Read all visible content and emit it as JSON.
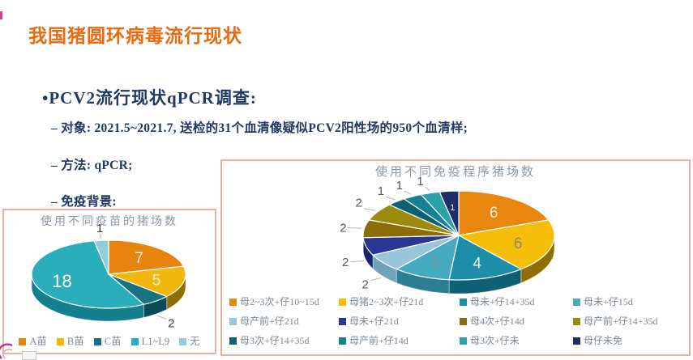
{
  "slide": {
    "title": "我国猪圆环病毒流行现状",
    "heading": "•PCV2流行现状qPCR调查:",
    "bullets": [
      "– 对象: 2021.5~2021.7, 送检的31个血清像疑似PCV2阳性场的950个血清样;",
      "– 方法: qPCR;",
      "– 免疫背景:"
    ]
  },
  "colors": {
    "accent_orange": "#E96A10",
    "text_navy": "#1F3864",
    "box_border": "#EFB19B",
    "chart_title_gray": "#8C99A6",
    "legend_text_gray": "#7D8994",
    "leader_line_gray": "#B3B3B3",
    "logo_magenta": "#C9328E"
  },
  "chart_data": [
    {
      "type": "pie",
      "title": "使用不同疫苗的猪场数",
      "legend_position": "bottom",
      "effect": "3d",
      "labels": [
        "A苗",
        "B苗",
        "C苗",
        "L1~L9",
        "无"
      ],
      "values": [
        7,
        5,
        2,
        18,
        1
      ],
      "colors": [
        "#E8830E",
        "#F2B70D",
        "#17737F",
        "#2BAEBC",
        "#8FCEDB"
      ],
      "side_colors": [
        "#AD6106",
        "#8F6E02",
        "#0B4A57",
        "#15808D",
        "#5FA8B8"
      ],
      "label_inside": [
        true,
        true,
        false,
        true,
        false
      ],
      "label_colors": [
        "#F7F3EA",
        "#F2EDD9",
        "#404040",
        "#FAFAF2",
        "#404040"
      ]
    },
    {
      "type": "pie",
      "title": "使用不同免疫程序猪场数",
      "legend_position": "bottom",
      "effect": "3d",
      "labels": [
        "母2~3次+仔10~15d",
        "母猪2~3次+仔21d",
        "母未+仔14+35d",
        "母未+仔15d",
        "母产前+仔21d",
        "母未+仔21d",
        "母4次+仔14d",
        "母产前+仔14+35d",
        "母3次+仔14+35d",
        "母产前+仔14d",
        "母3次+仔未",
        "母仔未免"
      ],
      "values": [
        6,
        6,
        4,
        3,
        2,
        2,
        2,
        2,
        1,
        1,
        1,
        1
      ],
      "colors": [
        "#E8860D",
        "#F5BE0B",
        "#1D8EA8",
        "#45AAC2",
        "#9AC6DB",
        "#2A3694",
        "#8A6D06",
        "#9C8A0A",
        "#0C6270",
        "#158294",
        "#2E9FAD",
        "#1F2D6B"
      ],
      "side_colors": [
        "#A85F04",
        "#8F6E02",
        "#0F5F75",
        "#2E7E93",
        "#6FA3BC",
        "#1B2468",
        "#5C4A04",
        "#6B5E06",
        "#073F4A",
        "#0B5666",
        "#1F6F7C",
        "#11193F"
      ],
      "label_inside": [
        true,
        true,
        true,
        true,
        false,
        false,
        false,
        false,
        false,
        false,
        false,
        true
      ],
      "label_colors": [
        "#F2EDDF",
        "#8F8C66",
        "#F2F2EA",
        "#7C99A6",
        "#595959",
        "#595959",
        "#595959",
        "#595959",
        "#595959",
        "#595959",
        "#595959",
        "#FFFFFF"
      ]
    }
  ]
}
